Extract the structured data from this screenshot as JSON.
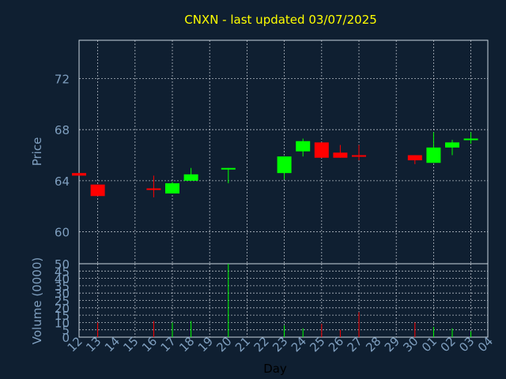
{
  "chart_data": {
    "type": "candlestick",
    "title": "CNXN - last updated 03/07/2025",
    "xlabel": "Day",
    "ylabel": "Price",
    "volume_label": "Volume (0000)",
    "colors": {
      "background": "#0f1f31",
      "title": "#ffff00",
      "axis_text": "#7f9fbf",
      "xlabel": "#000000",
      "up": "#00ff00",
      "down": "#ff0000",
      "frame": "#c8d4e0",
      "grid": "#e6ecf2"
    },
    "x_ticks": [
      "12",
      "13",
      "14",
      "15",
      "16",
      "17",
      "18",
      "19",
      "20",
      "21",
      "22",
      "23",
      "24",
      "25",
      "26",
      "27",
      "28",
      "29",
      "30",
      "01",
      "02",
      "03",
      "04"
    ],
    "price_ticks": [
      60,
      64,
      68,
      72
    ],
    "price_ylim": [
      57.5,
      75
    ],
    "volume_ticks": [
      0,
      5,
      10,
      15,
      20,
      25,
      30,
      35,
      40,
      45,
      50
    ],
    "volume_ylim": [
      0,
      50
    ],
    "grid": true,
    "candles": [
      {
        "day": "12",
        "open": 64.6,
        "high": 64.6,
        "low": 64.4,
        "close": 64.4,
        "volume": 0
      },
      {
        "day": "13",
        "open": 63.7,
        "high": 63.7,
        "low": 62.8,
        "close": 62.8,
        "volume": 10
      },
      {
        "day": "16",
        "open": 63.4,
        "high": 64.4,
        "low": 62.7,
        "close": 63.3,
        "volume": 11
      },
      {
        "day": "17",
        "open": 63.0,
        "high": 63.9,
        "low": 63.0,
        "close": 63.8,
        "volume": 10
      },
      {
        "day": "18",
        "open": 64.0,
        "high": 65.0,
        "low": 64.0,
        "close": 64.5,
        "volume": 11
      },
      {
        "day": "20",
        "open": 64.9,
        "high": 65.0,
        "low": 63.8,
        "close": 65.0,
        "volume": 50
      },
      {
        "day": "23",
        "open": 64.6,
        "high": 65.9,
        "low": 64.1,
        "close": 65.9,
        "volume": 8
      },
      {
        "day": "24",
        "open": 66.3,
        "high": 67.3,
        "low": 65.9,
        "close": 67.1,
        "volume": 6
      },
      {
        "day": "25",
        "open": 67.0,
        "high": 67.0,
        "low": 65.8,
        "close": 65.8,
        "volume": 9
      },
      {
        "day": "26",
        "open": 66.2,
        "high": 66.8,
        "low": 65.8,
        "close": 65.8,
        "volume": 5
      },
      {
        "day": "27",
        "open": 66.0,
        "high": 66.8,
        "low": 65.6,
        "close": 65.9,
        "volume": 17
      },
      {
        "day": "30",
        "open": 66.0,
        "high": 66.0,
        "low": 65.3,
        "close": 65.6,
        "volume": 10
      },
      {
        "day": "01",
        "open": 65.4,
        "high": 67.8,
        "low": 65.4,
        "close": 66.6,
        "volume": 7
      },
      {
        "day": "02",
        "open": 66.6,
        "high": 67.2,
        "low": 66.0,
        "close": 67.0,
        "volume": 6
      },
      {
        "day": "03",
        "open": 67.2,
        "high": 67.8,
        "low": 66.9,
        "close": 67.3,
        "volume": 4
      }
    ]
  }
}
